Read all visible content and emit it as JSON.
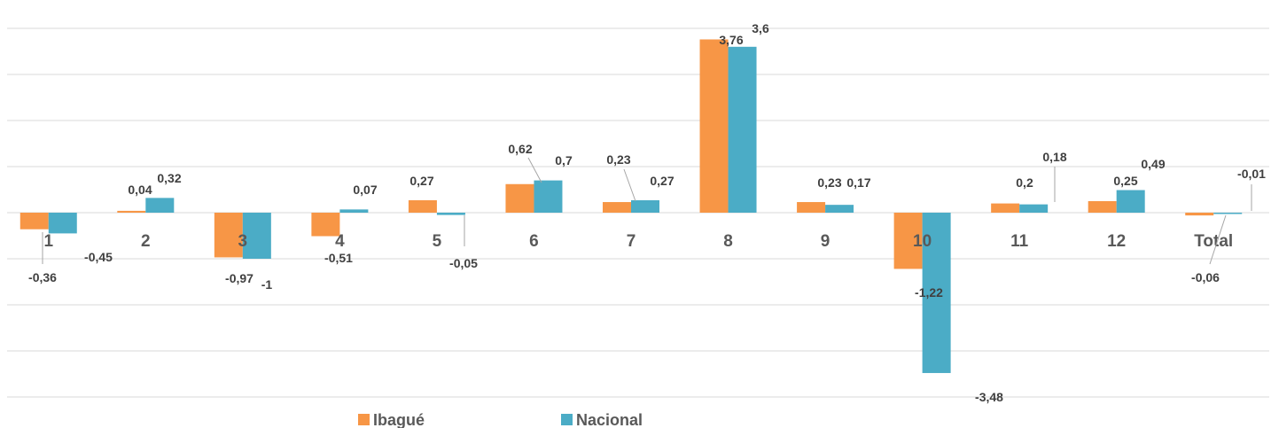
{
  "chart_data": {
    "type": "bar",
    "categories": [
      "1",
      "2",
      "3",
      "4",
      "5",
      "6",
      "7",
      "8",
      "9",
      "10",
      "11",
      "12",
      "Total"
    ],
    "series": [
      {
        "name": "Ibagué",
        "color": "#f79646",
        "values": [
          -0.36,
          0.04,
          -0.97,
          -0.51,
          0.27,
          0.62,
          0.23,
          3.76,
          0.23,
          -1.22,
          0.2,
          0.25,
          -0.06
        ],
        "labels": [
          "-0,36",
          "0,04",
          "-0,97",
          "-0,51",
          "0,27",
          "0,62",
          "0,23",
          "3,76",
          "0,23",
          "-1,22",
          "0,2",
          "0,25",
          "-0,06"
        ]
      },
      {
        "name": "Nacional",
        "color": "#4bacc6",
        "values": [
          -0.45,
          0.32,
          -1,
          0.07,
          -0.05,
          0.7,
          0.27,
          3.6,
          0.17,
          -3.48,
          0.18,
          0.49,
          -0.01
        ],
        "labels": [
          "-0,45",
          "0,32",
          "-1",
          "0,07",
          "-0,05",
          "0,7",
          "0,27",
          "3,6",
          "0,17",
          "-3,48",
          "0,18",
          "0,49",
          "-0,01"
        ]
      }
    ],
    "ylim": [
      -4,
      4
    ],
    "grid": true,
    "legend": "bottom"
  }
}
